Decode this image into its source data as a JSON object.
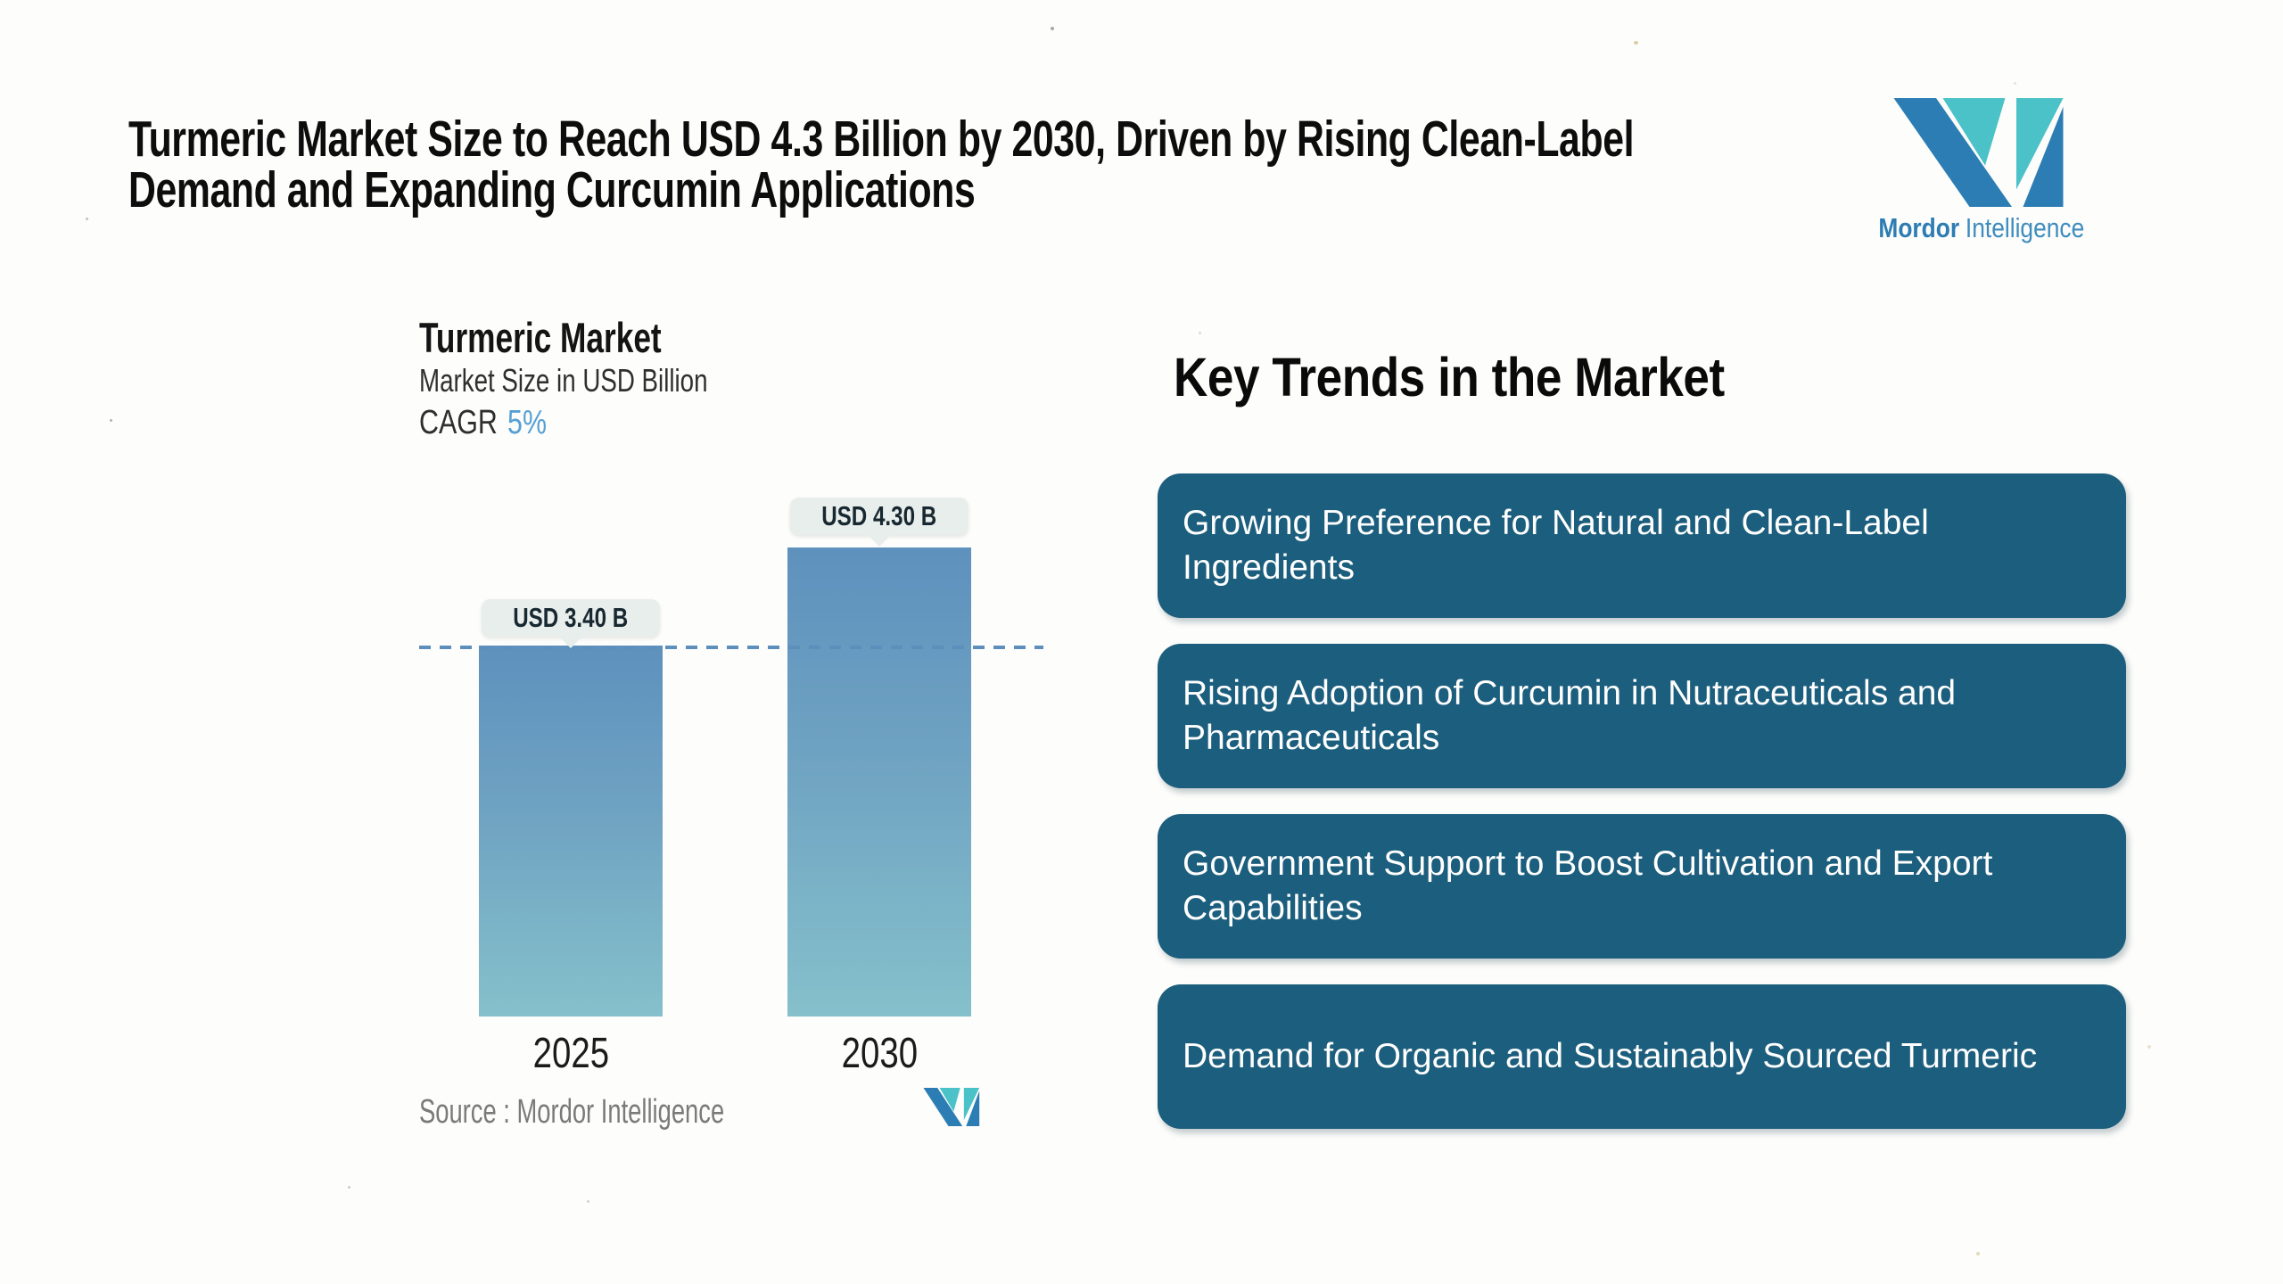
{
  "header": {
    "title_lines": [
      "Turmeric Market Size to Reach USD 4.3 Billion by 2030, Driven by Rising Clean-Label",
      "Demand and Expanding Curcumin Applications"
    ]
  },
  "logo": {
    "brand_bold": "Mordor",
    "brand_regular": "Intelligence",
    "colors": {
      "blue": "#2c7db4",
      "teal": "#4bc2c8"
    }
  },
  "chart": {
    "title": "Turmeric Market",
    "subtitle": "Market Size in USD Billion",
    "cagr_label": "CAGR",
    "cagr_value": "5%",
    "source_text": "Source :  Mordor Intelligence"
  },
  "chart_data": {
    "type": "bar",
    "title": "Turmeric Market",
    "subtitle": "Market Size in USD Billion",
    "cagr": "5%",
    "categories": [
      "2025",
      "2030"
    ],
    "values": [
      3.4,
      4.3
    ],
    "value_labels": [
      "USD 3.40 B",
      "USD 4.30 B"
    ],
    "ylabel": "Market Size in USD Billion",
    "ylim": [
      0,
      4.3
    ],
    "baseline": 0,
    "grid": false,
    "dashed_reference_value": 3.4,
    "bar_gradient_top": "#5e91bd",
    "bar_gradient_bottom": "#85c0cb",
    "dashed_line_color": "#5c8fbc",
    "value_label_bg": "#e8eeec"
  },
  "key_trends": {
    "heading": "Key Trends in the Market",
    "box_color": "#1c5e7d",
    "items": [
      "Growing Preference for Natural and Clean-Label Ingredients",
      "Rising Adoption of Curcumin in Nutraceuticals and Pharmaceuticals",
      "Government Support to Boost Cultivation and Export Capabilities",
      "Demand for Organic and Sustainably Sourced Turmeric"
    ]
  }
}
